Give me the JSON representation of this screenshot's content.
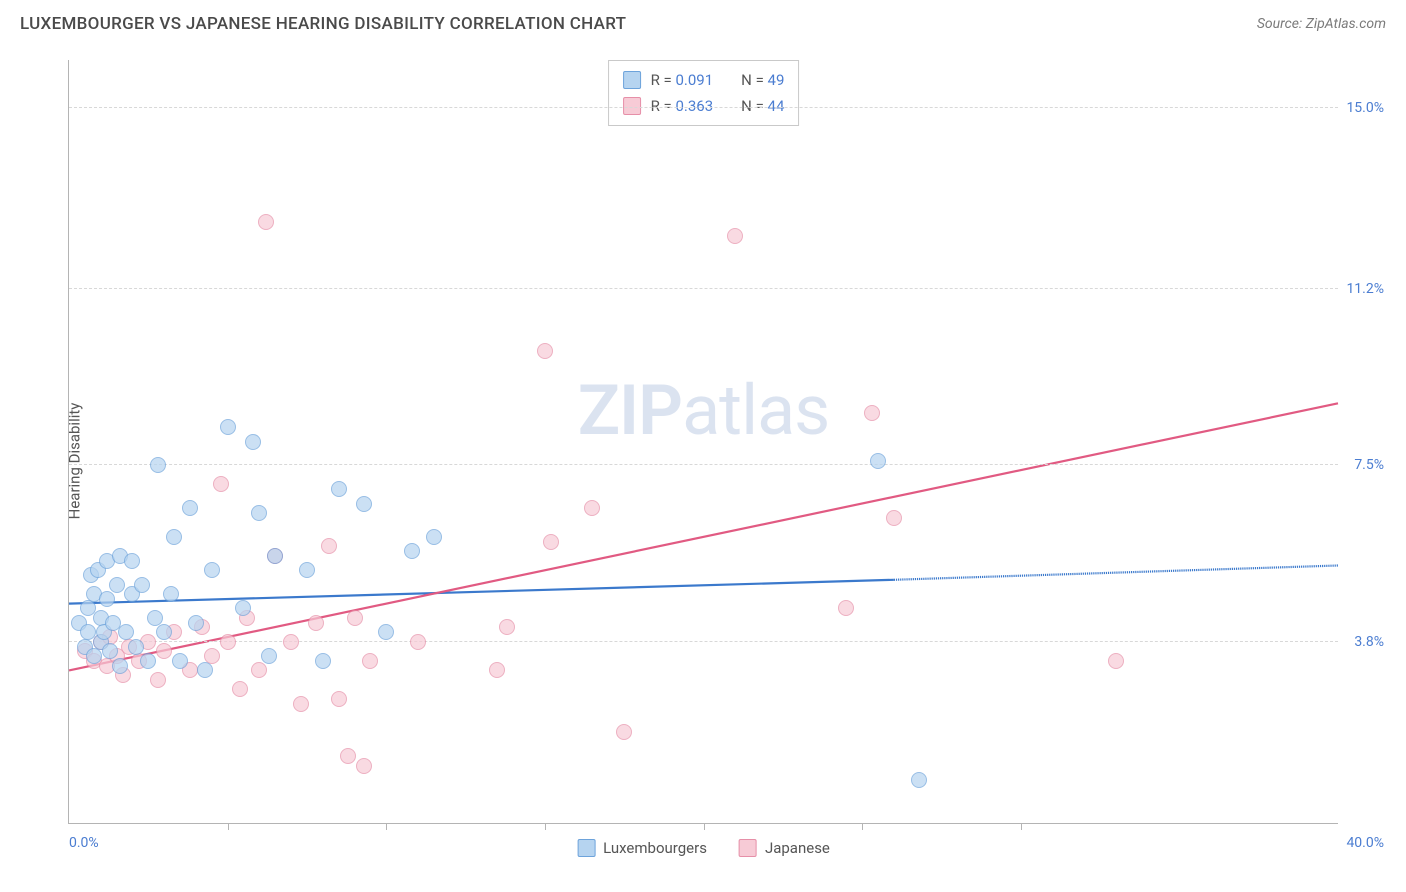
{
  "title": "LUXEMBOURGER VS JAPANESE HEARING DISABILITY CORRELATION CHART",
  "source": "Source: ZipAtlas.com",
  "watermark": {
    "zip": "ZIP",
    "atlas": "atlas"
  },
  "axes": {
    "y_label": "Hearing Disability",
    "x_min": 0.0,
    "x_max": 40.0,
    "y_min": 0.0,
    "y_max": 16.0,
    "y_ticks": [
      {
        "v": 3.8,
        "label": "3.8%"
      },
      {
        "v": 7.5,
        "label": "7.5%"
      },
      {
        "v": 11.2,
        "label": "11.2%"
      },
      {
        "v": 15.0,
        "label": "15.0%"
      }
    ],
    "x_tick_positions": [
      5,
      10,
      15,
      20,
      25,
      30
    ],
    "x_left_label": "0.0%",
    "x_right_label": "40.0%",
    "grid_color": "#d8d8d8",
    "axis_color": "#b4b4b4",
    "tick_label_color": "#4b7dd1"
  },
  "series": {
    "lux": {
      "label": "Luxembourgers",
      "fill": "#b6d4f0",
      "stroke": "#6da3db",
      "line_color": "#3b79cc",
      "point_radius": 8,
      "fill_opacity": 0.7,
      "R": "0.091",
      "N": "49",
      "trend": {
        "x1": 0,
        "y1": 4.6,
        "x2_solid": 26,
        "y2_solid": 5.1,
        "x2": 40,
        "y2": 5.4
      },
      "points": [
        [
          0.3,
          4.2
        ],
        [
          0.5,
          3.7
        ],
        [
          0.6,
          4.0
        ],
        [
          0.6,
          4.5
        ],
        [
          0.7,
          5.2
        ],
        [
          0.8,
          3.5
        ],
        [
          0.8,
          4.8
        ],
        [
          0.9,
          5.3
        ],
        [
          1.0,
          3.8
        ],
        [
          1.0,
          4.3
        ],
        [
          1.1,
          4.0
        ],
        [
          1.2,
          4.7
        ],
        [
          1.2,
          5.5
        ],
        [
          1.3,
          3.6
        ],
        [
          1.4,
          4.2
        ],
        [
          1.5,
          5.0
        ],
        [
          1.6,
          3.3
        ],
        [
          1.6,
          5.6
        ],
        [
          1.8,
          4.0
        ],
        [
          2.0,
          4.8
        ],
        [
          2.0,
          5.5
        ],
        [
          2.1,
          3.7
        ],
        [
          2.3,
          5.0
        ],
        [
          2.5,
          3.4
        ],
        [
          2.7,
          4.3
        ],
        [
          2.8,
          7.5
        ],
        [
          3.0,
          4.0
        ],
        [
          3.2,
          4.8
        ],
        [
          3.3,
          6.0
        ],
        [
          3.5,
          3.4
        ],
        [
          3.8,
          6.6
        ],
        [
          4.0,
          4.2
        ],
        [
          4.3,
          3.2
        ],
        [
          4.5,
          5.3
        ],
        [
          5.0,
          8.3
        ],
        [
          5.5,
          4.5
        ],
        [
          5.8,
          8.0
        ],
        [
          6.0,
          6.5
        ],
        [
          6.3,
          3.5
        ],
        [
          6.5,
          5.6
        ],
        [
          7.5,
          5.3
        ],
        [
          8.0,
          3.4
        ],
        [
          8.5,
          7.0
        ],
        [
          9.3,
          6.7
        ],
        [
          10.0,
          4.0
        ],
        [
          10.8,
          5.7
        ],
        [
          11.5,
          6.0
        ],
        [
          25.5,
          7.6
        ],
        [
          26.8,
          0.9
        ]
      ]
    },
    "jpn": {
      "label": "Japanese",
      "fill": "#f7cbd6",
      "stroke": "#e68fa8",
      "line_color": "#e15a82",
      "point_radius": 8,
      "fill_opacity": 0.7,
      "R": "0.363",
      "N": "44",
      "trend": {
        "x1": 0,
        "y1": 3.2,
        "x2_solid": 40,
        "y2_solid": 8.8,
        "x2": 40,
        "y2": 8.8
      },
      "points": [
        [
          0.5,
          3.6
        ],
        [
          0.8,
          3.4
        ],
        [
          1.0,
          3.8
        ],
        [
          1.2,
          3.3
        ],
        [
          1.3,
          3.9
        ],
        [
          1.5,
          3.5
        ],
        [
          1.7,
          3.1
        ],
        [
          1.9,
          3.7
        ],
        [
          2.2,
          3.4
        ],
        [
          2.5,
          3.8
        ],
        [
          2.8,
          3.0
        ],
        [
          3.0,
          3.6
        ],
        [
          3.3,
          4.0
        ],
        [
          3.8,
          3.2
        ],
        [
          4.2,
          4.1
        ],
        [
          4.5,
          3.5
        ],
        [
          4.8,
          7.1
        ],
        [
          5.0,
          3.8
        ],
        [
          5.4,
          2.8
        ],
        [
          5.6,
          4.3
        ],
        [
          6.0,
          3.2
        ],
        [
          6.2,
          12.6
        ],
        [
          6.5,
          5.6
        ],
        [
          7.0,
          3.8
        ],
        [
          7.3,
          2.5
        ],
        [
          7.8,
          4.2
        ],
        [
          8.2,
          5.8
        ],
        [
          8.5,
          2.6
        ],
        [
          8.8,
          1.4
        ],
        [
          9.0,
          4.3
        ],
        [
          9.3,
          1.2
        ],
        [
          9.5,
          3.4
        ],
        [
          11.0,
          3.8
        ],
        [
          13.5,
          3.2
        ],
        [
          13.8,
          4.1
        ],
        [
          15.0,
          9.9
        ],
        [
          15.2,
          5.9
        ],
        [
          16.5,
          6.6
        ],
        [
          17.5,
          1.9
        ],
        [
          21.0,
          12.3
        ],
        [
          24.5,
          4.5
        ],
        [
          25.3,
          8.6
        ],
        [
          26.0,
          6.4
        ],
        [
          33.0,
          3.4
        ]
      ]
    }
  },
  "stat_legend": {
    "R_prefix": "R = ",
    "N_prefix": "N = "
  }
}
